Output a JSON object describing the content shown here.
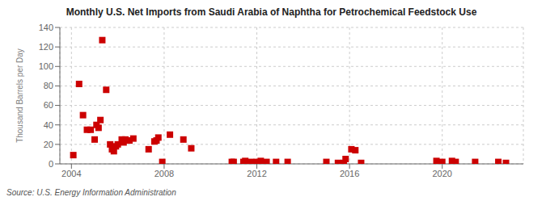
{
  "chart_data": {
    "type": "scatter",
    "title": "Monthly U.S. Net Imports from Saudi Arabia of Naphtha for Petrochemical Feedstock Use",
    "y_label": "Thousand Barrels per Day",
    "annotations": [
      "Source: U.S. Energy Information Administration"
    ],
    "color": "#cc0000",
    "marker": "square",
    "grid": true,
    "xlim": [
      2003.5,
      2023.5
    ],
    "ylim": [
      0,
      140
    ],
    "xticks": [
      2004,
      2008,
      2012,
      2016,
      2020
    ],
    "yticks": [
      0,
      20,
      40,
      60,
      80,
      100,
      120,
      140
    ],
    "x": [
      2004.08,
      2004.33,
      2004.5,
      2004.67,
      2004.83,
      2005.0,
      2005.08,
      2005.17,
      2005.25,
      2005.33,
      2005.5,
      2005.67,
      2005.75,
      2005.83,
      2005.92,
      2006.0,
      2006.17,
      2006.25,
      2006.33,
      2006.5,
      2006.67,
      2007.33,
      2007.58,
      2007.67,
      2007.75,
      2007.92,
      2008.25,
      2008.83,
      2009.17,
      2010.92,
      2011.0,
      2011.42,
      2011.5,
      2011.75,
      2012.0,
      2012.17,
      2012.42,
      2012.83,
      2013.33,
      2015.0,
      2015.5,
      2015.75,
      2015.83,
      2016.08,
      2016.25,
      2016.5,
      2019.75,
      2020.0,
      2020.42,
      2020.58,
      2021.42,
      2022.42,
      2022.75
    ],
    "values": [
      9,
      82,
      50,
      35,
      35,
      25,
      40,
      37,
      45,
      127,
      76,
      20,
      15,
      13,
      18,
      20,
      25,
      22,
      25,
      24,
      26,
      15,
      23,
      24,
      27,
      2,
      30,
      25,
      16,
      2,
      2,
      2,
      3,
      2,
      2,
      3,
      2,
      2,
      2,
      2,
      1,
      1,
      5,
      15,
      14,
      1,
      3,
      2,
      3,
      2,
      2,
      2,
      1
    ]
  }
}
